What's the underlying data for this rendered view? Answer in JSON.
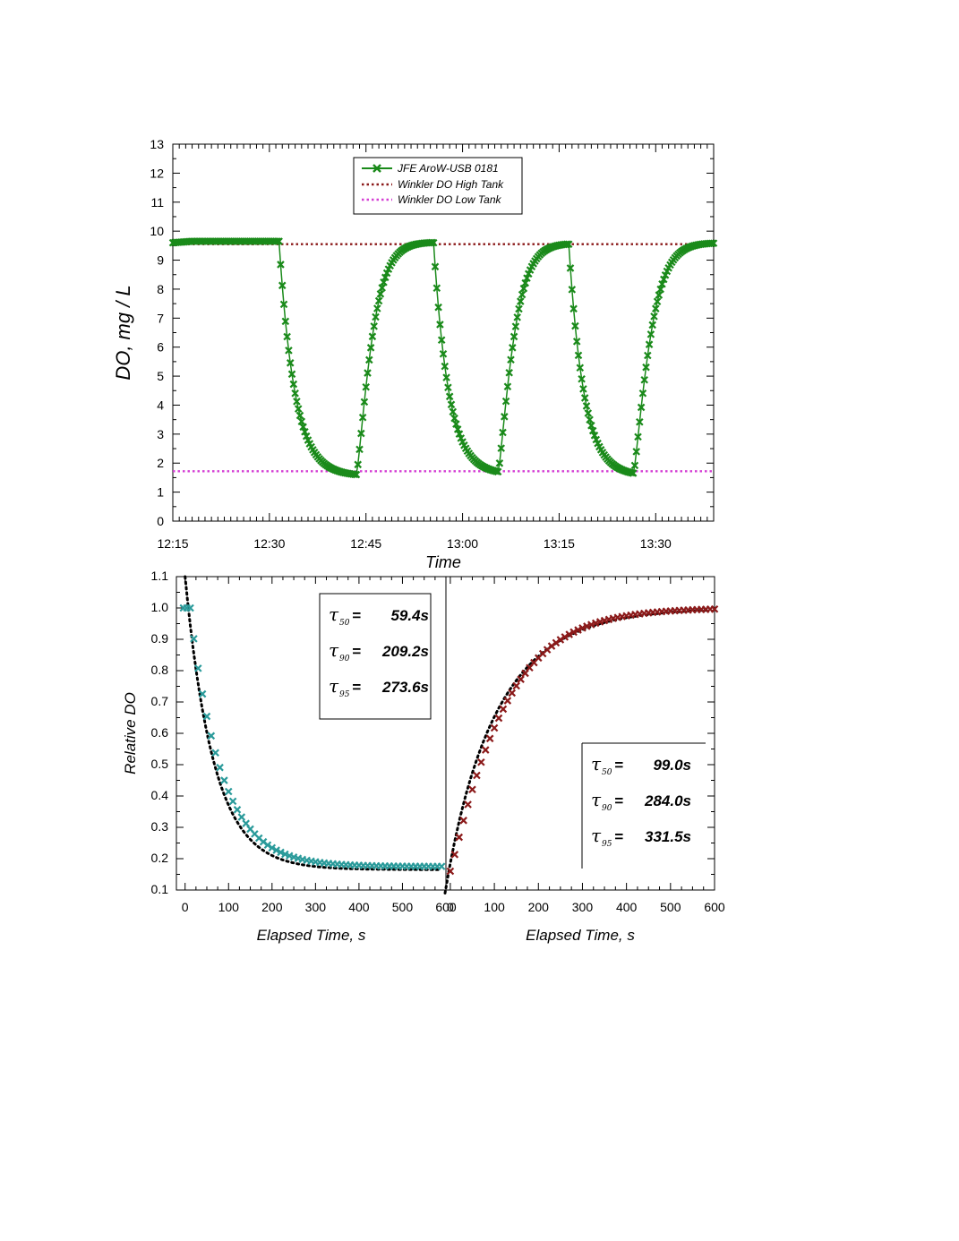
{
  "chart_data": [
    {
      "id": "top",
      "type": "scatter",
      "xlabel": "Time",
      "ylabel": "DO, mg / L",
      "x_ticks": [
        "12:15",
        "12:30",
        "12:45",
        "13:00",
        "13:15",
        "13:30"
      ],
      "x_tick_minutes": [
        0,
        15,
        30,
        45,
        60,
        75
      ],
      "xlim_minutes": [
        0,
        84
      ],
      "ylim": [
        0,
        13
      ],
      "y_ticks": [
        "0",
        "1",
        "2",
        "3",
        "4",
        "5",
        "6",
        "7",
        "8",
        "9",
        "10",
        "11",
        "12",
        "13"
      ],
      "legend": {
        "placement": "top-center",
        "entries": [
          "JFE AroW-USB 0181",
          "Winkler DO High Tank",
          "Winkler DO Low Tank"
        ]
      },
      "reference_lines": {
        "high": 9.55,
        "low": 1.72
      },
      "sensor": {
        "start_value": 9.6,
        "high_plateau": 9.65,
        "low_plateau": 1.55,
        "drops": [
          {
            "start_min": 16.5,
            "end_min": 28.5,
            "tau_min": 2.4,
            "from": 9.65,
            "to": 1.55
          },
          {
            "start_min": 40.5,
            "end_min": 50.5,
            "tau_min": 2.3,
            "from": 9.6,
            "to": 1.6
          },
          {
            "start_min": 61.5,
            "end_min": 71.5,
            "tau_min": 2.3,
            "from": 9.55,
            "to": 1.55
          }
        ],
        "rises": [
          {
            "start_min": 28.5,
            "end_min": 40.5,
            "tau_min": 2.7,
            "from": 1.55,
            "to": 9.62
          },
          {
            "start_min": 50.5,
            "end_min": 61.5,
            "tau_min": 2.7,
            "from": 1.6,
            "to": 9.58
          },
          {
            "start_min": 71.5,
            "end_min": 84,
            "tau_min": 2.9,
            "from": 1.55,
            "to": 9.6
          }
        ]
      },
      "colors": {
        "sensor": "#1a8a1a",
        "high": "#8b1a1a",
        "low": "#d43fd4"
      }
    },
    {
      "id": "bottom-left",
      "type": "scatter",
      "xlabel": "Elapsed Time, s",
      "ylabel": "Relative DO",
      "xlim": [
        -20,
        600
      ],
      "ylim": [
        0.1,
        1.1
      ],
      "x_ticks": [
        "0",
        "100",
        "200",
        "300",
        "400",
        "500",
        "600"
      ],
      "y_ticks": [
        "0.1",
        "0.2",
        "0.3",
        "0.4",
        "0.5",
        "0.6",
        "0.7",
        "0.8",
        "0.9",
        "1.0",
        "1.1"
      ],
      "decay": {
        "t0": 10,
        "tau": 72,
        "floor": 0.165,
        "fit_start": 1.1
      },
      "tau_labels": [
        {
          "sub": "50",
          "value": "59.4s"
        },
        {
          "sub": "90",
          "value": "209.2s"
        },
        {
          "sub": "95",
          "value": "273.6s"
        }
      ],
      "colors": {
        "points": "#2a9a9a",
        "fit": "#000000"
      }
    },
    {
      "id": "bottom-right",
      "type": "scatter",
      "xlabel": "Elapsed Time, s",
      "xlim": [
        0,
        600
      ],
      "ylim": [
        0.1,
        1.1
      ],
      "x_ticks": [
        "0",
        "100",
        "200",
        "300",
        "400",
        "500",
        "600"
      ],
      "growth": {
        "tau": 125,
        "start": 0.16,
        "end": 1.0
      },
      "tau_labels": [
        {
          "sub": "50",
          "value": "99.0s"
        },
        {
          "sub": "90",
          "value": "284.0s"
        },
        {
          "sub": "95",
          "value": "331.5s"
        }
      ],
      "colors": {
        "points": "#8b1a1a",
        "fit": "#000000"
      }
    }
  ]
}
